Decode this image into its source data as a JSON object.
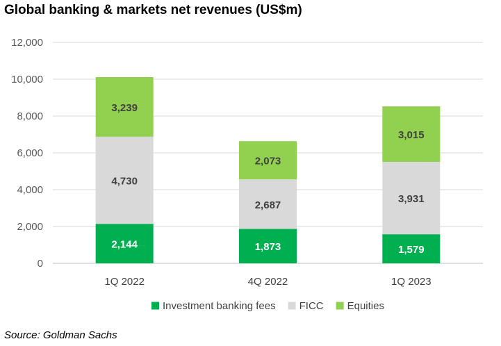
{
  "chart_data": {
    "type": "bar",
    "stacked": true,
    "title": "Global banking & markets net revenues (US$m)",
    "source": "Source: Goldman Sachs",
    "categories": [
      "1Q 2022",
      "4Q 2022",
      "1Q 2023"
    ],
    "series": [
      {
        "name": "Investment banking fees",
        "color": "#00b050",
        "values": [
          2144,
          1873,
          1579
        ],
        "labels": [
          "2,144",
          "1,873",
          "1,579"
        ],
        "label_color": "#ffffff"
      },
      {
        "name": "FICC",
        "color": "#d9d9d9",
        "values": [
          4730,
          2687,
          3931
        ],
        "labels": [
          "4,730",
          "2,687",
          "3,931"
        ],
        "label_color": "#404040"
      },
      {
        "name": "Equities",
        "color": "#92d050",
        "values": [
          3239,
          2073,
          3015
        ],
        "labels": [
          "3,239",
          "2,073",
          "3,015"
        ],
        "label_color": "#404040"
      }
    ],
    "ylim": [
      0,
      12000
    ],
    "yticks": [
      0,
      2000,
      4000,
      6000,
      8000,
      10000,
      12000
    ],
    "ytick_labels": [
      "0",
      "2,000",
      "4,000",
      "6,000",
      "8,000",
      "10,000",
      "12,000"
    ],
    "grid": true,
    "legend_position": "bottom"
  }
}
